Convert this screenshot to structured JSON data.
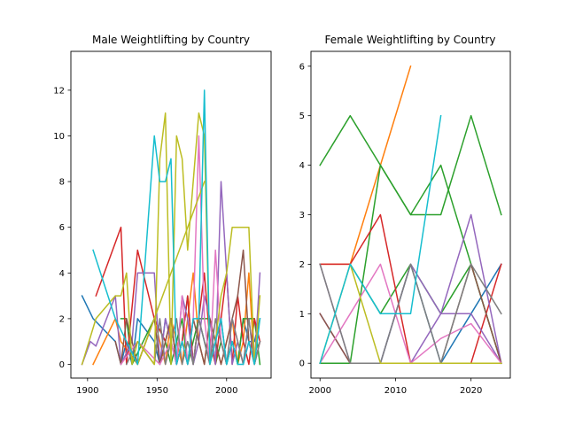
{
  "chart_data": [
    {
      "type": "line",
      "title": "Male Weightlifting by Country",
      "xlim": [
        1888,
        2032
      ],
      "ylim": [
        -0.6,
        13.7
      ],
      "xticks": [
        1900,
        1950,
        2000
      ],
      "yticks": [
        0,
        2,
        4,
        6,
        8,
        10,
        12
      ],
      "grid": false,
      "series": [
        {
          "color": "#1f77b4",
          "x": [
            1896,
            1904,
            1920,
            1924,
            1928,
            1932,
            1936,
            1948,
            1952,
            1956,
            1960,
            1964,
            1968,
            1972,
            1976,
            1980,
            1984,
            1988,
            1992,
            1996,
            2000,
            2004,
            2008,
            2012,
            2016,
            2020,
            2024
          ],
          "y": [
            3,
            2,
            1,
            0,
            1,
            0,
            2,
            1,
            0,
            2,
            1,
            0,
            1,
            3,
            0,
            2,
            1,
            0,
            1,
            2,
            0,
            1,
            0,
            2,
            1,
            1,
            2
          ]
        },
        {
          "color": "#ff7f0e",
          "x": [
            1904,
            1920,
            1924,
            1936,
            1948,
            1952,
            1956,
            1960,
            1964,
            1968,
            1972,
            1976,
            1980,
            1984,
            1988,
            1992,
            1996,
            2000,
            2004,
            2008,
            2012,
            2016,
            2020,
            2024
          ],
          "y": [
            0,
            2,
            1,
            0,
            2,
            1,
            0,
            2,
            1,
            0,
            2,
            4,
            1,
            0,
            2,
            1,
            0,
            1,
            2,
            0,
            1,
            4,
            0,
            1
          ]
        },
        {
          "color": "#2ca02c",
          "x": [
            1924,
            1928,
            1932,
            1948,
            1956,
            1960,
            1964,
            1968,
            1972,
            1976,
            1980,
            1984,
            1988,
            1992,
            1996,
            2000,
            2004,
            2008,
            2012,
            2016,
            2020,
            2024
          ],
          "y": [
            2,
            2,
            0,
            2,
            1,
            0,
            1,
            2,
            0,
            1,
            2,
            2,
            2,
            0,
            1,
            0,
            1,
            0,
            2,
            2,
            2,
            0
          ]
        },
        {
          "color": "#d62728",
          "x": [
            1906,
            1924,
            1928,
            1936,
            1948,
            1956,
            1960,
            1964,
            1968,
            1972,
            1976,
            1980,
            1984,
            1988,
            1992,
            1996,
            2000,
            2004,
            2008,
            2012,
            2016,
            2020,
            2024
          ],
          "y": [
            3,
            6,
            0,
            5,
            2,
            1,
            2,
            0,
            1,
            3,
            0,
            2,
            4,
            1,
            0,
            2,
            4,
            0,
            3,
            1,
            0,
            2,
            1
          ]
        },
        {
          "color": "#9467bd",
          "x": [
            1896,
            1902,
            1906,
            1920,
            1924,
            1932,
            1936,
            1948,
            1952,
            1956,
            1960,
            1964,
            1968,
            1972,
            1976,
            1980,
            1984,
            1988,
            1992,
            1996,
            2000,
            2004,
            2008,
            2012,
            2016,
            2020,
            2024
          ],
          "y": [
            0,
            1,
            0.8,
            3,
            0,
            1,
            4,
            4,
            0,
            2,
            1,
            0,
            3,
            2,
            0,
            1,
            3,
            2,
            0,
            8,
            4,
            0,
            1,
            0,
            2,
            0,
            4
          ]
        },
        {
          "color": "#8c564b",
          "x": [
            1920,
            1924,
            1928,
            1936,
            1948,
            1952,
            1956,
            1960,
            1964,
            1968,
            1972,
            1976,
            1980,
            1984,
            1988,
            1992,
            1996,
            2000,
            2004,
            2008,
            2012,
            2016,
            2020,
            2024
          ],
          "y": [
            1,
            0,
            2,
            0,
            2,
            0,
            1,
            2,
            0,
            1,
            0,
            2,
            1,
            0,
            2,
            1,
            0,
            1,
            2,
            3,
            5,
            1,
            0,
            1
          ]
        },
        {
          "color": "#e377c2",
          "x": [
            1924,
            1936,
            1952,
            1960,
            1964,
            1968,
            1972,
            1976,
            1980,
            1984,
            1988,
            1992,
            1996,
            2000,
            2004,
            2008,
            2012,
            2016,
            2020,
            2024
          ],
          "y": [
            0,
            1,
            0,
            1,
            0,
            3,
            0,
            2,
            10,
            2,
            0,
            5,
            1,
            0,
            2,
            1,
            0,
            1,
            0,
            1
          ]
        },
        {
          "color": "#7f7f7f",
          "x": [
            1928,
            1936,
            1948,
            1952,
            1956,
            1960,
            1964,
            1968,
            1972,
            1976,
            1980,
            1984,
            1988,
            1992,
            1996,
            2000,
            2004,
            2008,
            2012,
            2016,
            2020,
            2024
          ],
          "y": [
            0,
            1,
            0,
            2,
            0,
            1,
            2,
            0,
            1,
            0,
            2,
            1,
            0,
            2,
            1,
            0,
            2,
            1,
            0,
            2,
            0,
            1
          ]
        },
        {
          "color": "#bcbd22",
          "x": [
            1896,
            1906,
            1920,
            1924,
            1928,
            1932,
            1936,
            1948,
            1952,
            1956,
            1960,
            1964,
            1968,
            1972,
            1976,
            1980,
            1984,
            1988,
            1992,
            1996,
            2000,
            2004,
            2008,
            2012,
            2016,
            2020,
            2024
          ],
          "y": [
            0,
            2,
            3,
            3,
            4,
            0,
            1,
            0,
            9,
            11,
            0,
            10,
            9,
            5,
            8,
            11,
            10,
            0,
            1,
            3,
            4,
            6,
            6,
            6,
            6,
            0,
            3
          ]
        },
        {
          "color": "#bcbd22",
          "x": [
            1936,
            1984
          ],
          "y": [
            0,
            8
          ]
        },
        {
          "color": "#17becf",
          "x": [
            1904,
            1920,
            1928,
            1936,
            1948,
            1952,
            1956,
            1960,
            1964,
            1968,
            1972,
            1976,
            1980,
            1984,
            1988,
            1992,
            1996,
            2000,
            2004,
            2008,
            2012,
            2016,
            2020,
            2024
          ],
          "y": [
            5,
            2,
            1,
            0,
            10,
            8,
            8,
            9,
            0,
            1,
            0,
            2,
            2,
            12,
            0,
            1,
            2,
            0,
            1,
            0,
            0,
            1,
            0,
            2
          ]
        }
      ]
    },
    {
      "type": "line",
      "title": "Female Weightlifting by Country",
      "xlim": [
        1998.8,
        2025.2
      ],
      "ylim": [
        -0.3,
        6.3
      ],
      "xticks": [
        2000,
        2010,
        2020
      ],
      "yticks": [
        0,
        1,
        2,
        3,
        4,
        5,
        6
      ],
      "grid": false,
      "series": [
        {
          "color": "#1f77b4",
          "x": [
            2000,
            2004,
            2008,
            2012,
            2016,
            2020,
            2024
          ],
          "y": [
            0,
            0,
            0,
            2,
            0,
            1,
            2
          ]
        },
        {
          "color": "#ff7f0e",
          "x": [
            2000,
            2004,
            2008,
            2012
          ],
          "y": [
            2,
            2,
            4,
            6
          ]
        },
        {
          "color": "#2ca02c",
          "x": [
            2000,
            2004,
            2008,
            2012,
            2016,
            2020,
            2024
          ],
          "y": [
            4,
            5,
            4,
            3,
            3,
            5,
            3
          ]
        },
        {
          "color": "#2ca02c",
          "x": [
            2000,
            2004,
            2008,
            2012,
            2016,
            2020,
            2024
          ],
          "y": [
            0,
            0,
            4,
            3,
            4,
            2,
            0
          ]
        },
        {
          "color": "#2ca02c",
          "x": [
            2004,
            2008,
            2012,
            2016,
            2020,
            2024
          ],
          "y": [
            2,
            1,
            2,
            1,
            2,
            0
          ]
        },
        {
          "color": "#d62728",
          "x": [
            2000,
            2004,
            2008,
            2012,
            2016,
            2020,
            2024
          ],
          "y": [
            2,
            2,
            3,
            0,
            0,
            0,
            2
          ]
        },
        {
          "color": "#9467bd",
          "x": [
            2000,
            2004,
            2008,
            2012,
            2016,
            2020,
            2024
          ],
          "y": [
            2,
            0,
            0,
            2,
            1,
            3,
            0
          ]
        },
        {
          "color": "#9467bd",
          "x": [
            2000,
            2004,
            2008,
            2012,
            2016,
            2020,
            2024
          ],
          "y": [
            1,
            0,
            0,
            0,
            1,
            1,
            0
          ]
        },
        {
          "color": "#8c564b",
          "x": [
            2000,
            2004,
            2008,
            2012,
            2016,
            2020,
            2024
          ],
          "y": [
            1,
            0,
            0,
            0,
            0,
            2,
            0
          ]
        },
        {
          "color": "#e377c2",
          "x": [
            2000,
            2004,
            2008,
            2012,
            2016,
            2020,
            2024
          ],
          "y": [
            0,
            1,
            2,
            0,
            0.5,
            0.8,
            0
          ]
        },
        {
          "color": "#7f7f7f",
          "x": [
            2000,
            2004,
            2008,
            2012,
            2016,
            2020,
            2024
          ],
          "y": [
            2,
            0,
            0,
            2,
            0,
            2,
            1
          ]
        },
        {
          "color": "#bcbd22",
          "x": [
            2000,
            2004,
            2008,
            2012,
            2016,
            2020,
            2024
          ],
          "y": [
            0,
            2,
            0,
            0,
            0,
            0,
            0
          ]
        },
        {
          "color": "#17becf",
          "x": [
            2000,
            2004,
            2008,
            2012,
            2016
          ],
          "y": [
            0,
            2,
            1,
            1,
            5
          ]
        }
      ]
    }
  ]
}
